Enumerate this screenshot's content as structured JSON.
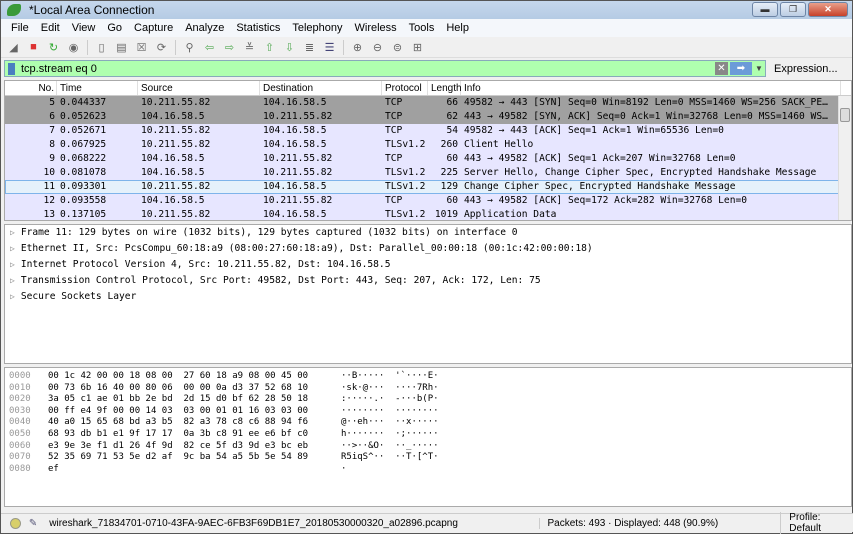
{
  "window": {
    "title": "*Local Area Connection"
  },
  "menu": [
    "File",
    "Edit",
    "View",
    "Go",
    "Capture",
    "Analyze",
    "Statistics",
    "Telephony",
    "Wireless",
    "Tools",
    "Help"
  ],
  "toolbar_icons": [
    "shark-fin-start-icon",
    "stop-icon",
    "restart-icon",
    "options-icon",
    "open-icon",
    "save-icon",
    "close-file-icon",
    "reload-icon",
    "find-icon",
    "back-icon",
    "forward-icon",
    "goto-icon",
    "first-icon",
    "last-icon",
    "autoscroll-icon",
    "colorize-icon",
    "zoom-in-icon",
    "zoom-out-icon",
    "zoom-normal-icon",
    "resize-columns-icon"
  ],
  "filter": {
    "value": "tcp.stream eq 0",
    "expression_label": "Expression...",
    "plus": "+",
    "bg_color": "#afffaf"
  },
  "packet_list": {
    "columns": [
      "No.",
      "Time",
      "Source",
      "Destination",
      "Protocol",
      "Length",
      "Info"
    ],
    "rows": [
      {
        "no": "5",
        "time": "0.044337",
        "src": "10.211.55.82",
        "dst": "104.16.58.5",
        "proto": "TCP",
        "len": "66",
        "info": "49582 → 443 [SYN] Seq=0 Win=8192 Len=0 MSS=1460 WS=256 SACK_PE…",
        "style": "syn"
      },
      {
        "no": "6",
        "time": "0.052623",
        "src": "104.16.58.5",
        "dst": "10.211.55.82",
        "proto": "TCP",
        "len": "62",
        "info": "443 → 49582 [SYN, ACK] Seq=0 Ack=1 Win=32768 Len=0 MSS=1460 WS…",
        "style": "syn"
      },
      {
        "no": "7",
        "time": "0.052671",
        "src": "10.211.55.82",
        "dst": "104.16.58.5",
        "proto": "TCP",
        "len": "54",
        "info": "49582 → 443 [ACK] Seq=1 Ack=1 Win=65536 Len=0",
        "style": ""
      },
      {
        "no": "8",
        "time": "0.067925",
        "src": "10.211.55.82",
        "dst": "104.16.58.5",
        "proto": "TLSv1.2",
        "len": "260",
        "info": "Client Hello",
        "style": ""
      },
      {
        "no": "9",
        "time": "0.068222",
        "src": "104.16.58.5",
        "dst": "10.211.55.82",
        "proto": "TCP",
        "len": "60",
        "info": "443 → 49582 [ACK] Seq=1 Ack=207 Win=32768 Len=0",
        "style": ""
      },
      {
        "no": "10",
        "time": "0.081078",
        "src": "104.16.58.5",
        "dst": "10.211.55.82",
        "proto": "TLSv1.2",
        "len": "225",
        "info": "Server Hello, Change Cipher Spec, Encrypted Handshake Message",
        "style": ""
      },
      {
        "no": "11",
        "time": "0.093301",
        "src": "10.211.55.82",
        "dst": "104.16.58.5",
        "proto": "TLSv1.2",
        "len": "129",
        "info": "Change Cipher Spec, Encrypted Handshake Message",
        "style": "sel"
      },
      {
        "no": "12",
        "time": "0.093558",
        "src": "104.16.58.5",
        "dst": "10.211.55.82",
        "proto": "TCP",
        "len": "60",
        "info": "443 → 49582 [ACK] Seq=172 Ack=282 Win=32768 Len=0",
        "style": ""
      },
      {
        "no": "13",
        "time": "0.137105",
        "src": "10.211.55.82",
        "dst": "104.16.58.5",
        "proto": "TLSv1.2",
        "len": "1019",
        "info": "Application Data",
        "style": ""
      }
    ]
  },
  "details": [
    "Frame 11: 129 bytes on wire (1032 bits), 129 bytes captured (1032 bits) on interface 0",
    "Ethernet II, Src: PcsCompu_60:18:a9 (08:00:27:60:18:a9), Dst: Parallel_00:00:18 (00:1c:42:00:00:18)",
    "Internet Protocol Version 4, Src: 10.211.55.82, Dst: 104.16.58.5",
    "Transmission Control Protocol, Src Port: 49582, Dst Port: 443, Seq: 207, Ack: 172, Len: 75",
    "Secure Sockets Layer"
  ],
  "hex": [
    {
      "off": "0000",
      "hex": "00 1c 42 00 00 18 08 00  27 60 18 a9 08 00 45 00",
      "ascii": "··B·····  '`····E·"
    },
    {
      "off": "0010",
      "hex": "00 73 6b 16 40 00 80 06  00 00 0a d3 37 52 68 10",
      "ascii": "·sk·@···  ····7Rh·"
    },
    {
      "off": "0020",
      "hex": "3a 05 c1 ae 01 bb 2e bd  2d 15 d0 bf 62 28 50 18",
      "ascii": ":·····.·  -···b(P·"
    },
    {
      "off": "0030",
      "hex": "00 ff e4 9f 00 00 14 03  03 00 01 01 16 03 03 00",
      "ascii": "········  ········"
    },
    {
      "off": "0040",
      "hex": "40 a0 15 65 68 bd a3 b5  82 a3 78 c8 c6 88 94 f6",
      "ascii": "@··eh···  ··x·····"
    },
    {
      "off": "0050",
      "hex": "68 93 db b1 e1 9f 17 17  0a 3b c8 91 ee e6 bf c0",
      "ascii": "h·······  ·;······"
    },
    {
      "off": "0060",
      "hex": "e3 9e 3e f1 d1 26 4f 9d  82 ce 5f d3 9d e3 bc eb",
      "ascii": "··>··&O·  ··_·····"
    },
    {
      "off": "0070",
      "hex": "52 35 69 71 53 5e d2 af  9c ba 54 a5 5b 5e 54 89",
      "ascii": "R5iqS^··  ··T·[^T·"
    },
    {
      "off": "0080",
      "hex": "ef",
      "ascii": "·"
    }
  ],
  "status": {
    "file": "wireshark_71834701-0710-43FA-9AEC-6FB3F69DB1E7_20180530000320_a02896.pcapng",
    "packets": "Packets: 493 · Displayed: 448 (90.9%)",
    "profile": "Profile: Default"
  }
}
